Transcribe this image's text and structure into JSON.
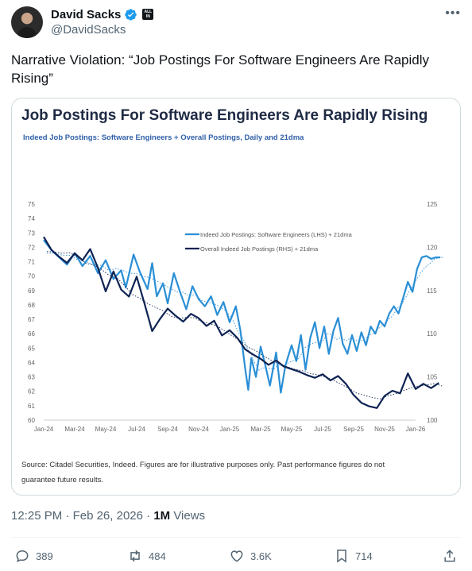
{
  "author": {
    "display_name": "David Sacks",
    "handle": "@DavidSacks",
    "badge_text": "ALL IN"
  },
  "tweet": {
    "text": "Narrative Violation: “Job Postings For Software Engineers Are Rapidly Rising”"
  },
  "chart": {
    "title": "Job Postings For Software Engineers Are Rapidly Rising",
    "subtitle": "Indeed Job Postings: Software Engineers + Overall Postings, Daily and 21dma",
    "source_line1": "Source: Citadel Securities, Indeed. Figures are for illustrative purposes only. Past performance figures do not",
    "source_line2": "guarantee future results."
  },
  "chart_data": {
    "type": "line",
    "x_ticks": [
      "Jan-24",
      "Mar-24",
      "May-24",
      "Jul-24",
      "Sep-24",
      "Nov-24",
      "Jan-25",
      "Mar-25",
      "May-25",
      "Jul-25",
      "Sep-25",
      "Nov-25",
      "Jan-26"
    ],
    "y_left_ticks": [
      60,
      61,
      62,
      63,
      64,
      65,
      66,
      67,
      68,
      69,
      70,
      71,
      72,
      73,
      74,
      75
    ],
    "y_right_ticks": [
      100,
      105,
      110,
      115,
      120,
      125
    ],
    "ylim_left": [
      60,
      75
    ],
    "ylim_right": [
      100,
      125
    ],
    "legend_position": "top-right",
    "series": [
      {
        "name": "Indeed Job Postings: Software Engineers (LHS) + 21dma",
        "axis": "left",
        "color": "#2a8fd6",
        "x": [
          0,
          0.5,
          1,
          1.5,
          2,
          2.5,
          3,
          3.5,
          4,
          4.5,
          5,
          5.3,
          5.8,
          6.2,
          6.7,
          7.0,
          7.3,
          7.7,
          8,
          8.4,
          8.8,
          9.2,
          9.6,
          10,
          10.4,
          10.8,
          11.2,
          11.6,
          12,
          12.4,
          12.7,
          13.0,
          13.2,
          13.4,
          13.7,
          14,
          14.3,
          14.6,
          15,
          15.3,
          15.6,
          16,
          16.3,
          16.6,
          16.9,
          17.2,
          17.5,
          17.8,
          18.1,
          18.4,
          18.7,
          19,
          19.3,
          19.6,
          19.9,
          20.2,
          20.5,
          20.8,
          21.1,
          21.4,
          21.7,
          22,
          22.3,
          22.6,
          22.9,
          23.2,
          23.5,
          23.8,
          24.1,
          24.4,
          24.7,
          25,
          25.3,
          25.6
        ],
        "y": [
          72.5,
          71.8,
          71.3,
          70.8,
          71.6,
          70.7,
          71.4,
          70.2,
          71.1,
          69.8,
          70.4,
          69.2,
          71.5,
          70.3,
          69.1,
          70.9,
          68.6,
          69.5,
          68.1,
          70.2,
          68.9,
          67.7,
          69.3,
          68.4,
          67.9,
          68.6,
          67.3,
          68.2,
          66.8,
          67.9,
          66.2,
          63.6,
          62.1,
          64.3,
          63.0,
          65.1,
          63.8,
          62.4,
          64.7,
          61.9,
          63.8,
          65.2,
          64.1,
          65.9,
          63.5,
          65.7,
          66.8,
          65.0,
          66.5,
          64.6,
          66.2,
          67.1,
          65.3,
          64.6,
          65.9,
          64.8,
          66.1,
          65.2,
          66.5,
          66.0,
          66.9,
          66.5,
          67.4,
          67.9,
          67.4,
          68.5,
          69.6,
          68.9,
          70.5,
          71.3,
          71.4,
          71.2,
          71.3,
          71.3
        ]
      },
      {
        "name": "Overall Indeed Job Postings (RHS) + 21dma",
        "axis": "right",
        "color": "#0e2353",
        "x": [
          0,
          0.5,
          1,
          1.5,
          2,
          2.5,
          3,
          3.5,
          4,
          4.5,
          5,
          5.5,
          6,
          6.5,
          7,
          7.5,
          8,
          8.5,
          9,
          9.5,
          10,
          10.5,
          11,
          11.5,
          12,
          12.5,
          13,
          13.5,
          14,
          14.5,
          15,
          15.5,
          16,
          16.5,
          17,
          17.5,
          18,
          18.5,
          19,
          19.5,
          20,
          20.5,
          21,
          21.5,
          22,
          22.5,
          23,
          23.5,
          24,
          24.5,
          25,
          25.5
        ],
        "y": [
          121.2,
          119.7,
          118.9,
          118.2,
          119.3,
          118.5,
          119.8,
          117.6,
          114.9,
          117.2,
          115.1,
          114.3,
          116.6,
          113.5,
          110.3,
          111.7,
          112.9,
          112.1,
          111.4,
          112.3,
          111.8,
          110.9,
          111.5,
          109.8,
          110.4,
          109.5,
          108.2,
          107.6,
          107.1,
          106.4,
          106.9,
          106.2,
          105.9,
          105.6,
          105.2,
          104.9,
          105.3,
          104.6,
          105.1,
          104.2,
          102.9,
          102.0,
          101.6,
          101.4,
          102.8,
          103.4,
          103.1,
          105.4,
          103.6,
          104.2,
          103.7,
          104.3
        ]
      }
    ]
  },
  "meta": {
    "time": "12:25 PM",
    "sep": "·",
    "date": "Feb 26, 2026",
    "views_count": "1M",
    "views_label": "Views"
  },
  "actions": {
    "replies": "389",
    "reposts": "484",
    "likes": "3.6K",
    "bookmarks": "714"
  },
  "icons": [
    "verified-icon",
    "more-icon",
    "reply-icon",
    "repost-icon",
    "like-icon",
    "bookmark-icon",
    "share-icon"
  ]
}
